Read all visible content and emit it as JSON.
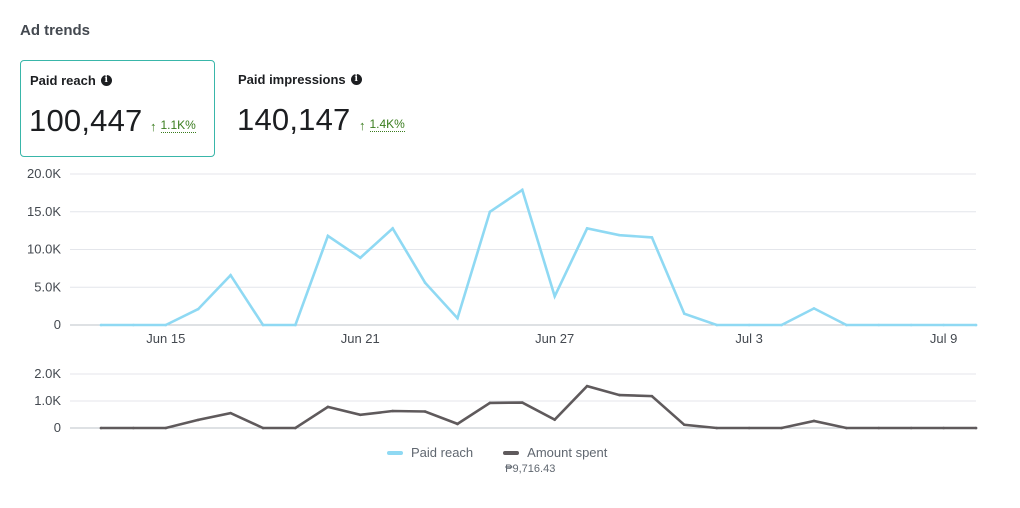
{
  "header": {
    "title": "Ad trends"
  },
  "metrics": [
    {
      "label": "Paid reach",
      "value": "100,447",
      "change": "1.1K%",
      "info_icon": "info-icon",
      "selected": true
    },
    {
      "label": "Paid impressions",
      "value": "140,147",
      "change": "1.4K%",
      "info_icon": "info-icon",
      "selected": false
    }
  ],
  "colors": {
    "reach": "#8fd9f3",
    "spent": "#5f5a5c",
    "selected_border": "#39b6a9",
    "positive": "#3a7d1e"
  },
  "legend": {
    "reach_label": "Paid reach",
    "spent_label": "Amount spent",
    "spent_total": "₱9,716.43"
  },
  "chart_data": [
    {
      "type": "line",
      "series": [
        {
          "name": "Paid reach",
          "values": [
            0,
            0,
            0,
            2100,
            6600,
            0,
            0,
            11800,
            8900,
            12800,
            5600,
            900,
            15000,
            17900,
            3800,
            12800,
            11900,
            11600,
            1500,
            0,
            0,
            0,
            2200,
            0,
            0,
            0,
            0,
            0
          ]
        }
      ],
      "x_tick_labels": [
        "Jun 15",
        "Jun 21",
        "Jun 27",
        "Jul 3",
        "Jul 9"
      ],
      "x_tick_indices": [
        2,
        8,
        14,
        20,
        26
      ],
      "y_tick_labels": [
        "0",
        "5.0K",
        "10.0K",
        "15.0K",
        "20.0K"
      ],
      "y_tick_values": [
        0,
        5000,
        10000,
        15000,
        20000
      ],
      "ylim": [
        0,
        20000
      ],
      "grid": true
    },
    {
      "type": "line",
      "series": [
        {
          "name": "Amount spent",
          "values": [
            0,
            0,
            0,
            300,
            550,
            0,
            0,
            780,
            490,
            630,
            610,
            150,
            930,
            940,
            310,
            1550,
            1220,
            1180,
            120,
            0,
            0,
            0,
            260,
            0,
            0,
            0,
            0,
            0
          ]
        }
      ],
      "y_tick_labels": [
        "0",
        "1.0K",
        "2.0K"
      ],
      "y_tick_values": [
        0,
        1000,
        2000
      ],
      "ylim": [
        0,
        2000
      ],
      "grid": true,
      "legend_position": "bottom-center"
    }
  ]
}
